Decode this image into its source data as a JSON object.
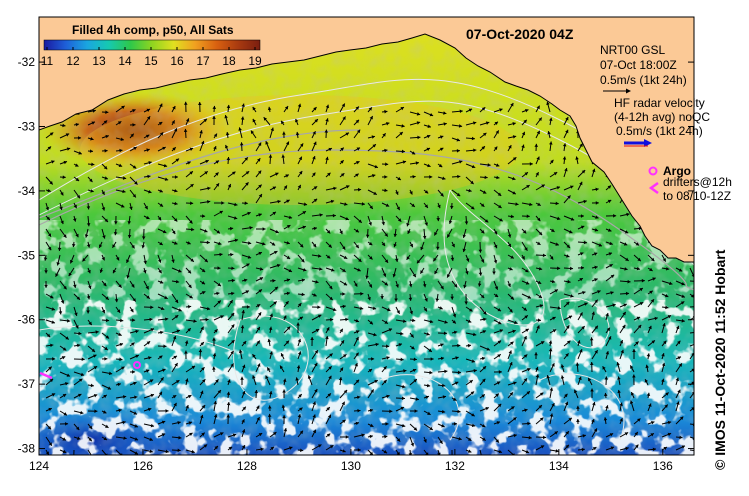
{
  "header": {
    "colorbar_title": "Filled 4h comp, p50, All Sats",
    "timestamp": "07-Oct-2020 04Z"
  },
  "colorbar": {
    "ticks": [
      "11",
      "12",
      "13",
      "14",
      "15",
      "16",
      "17",
      "18",
      "19"
    ],
    "colors": [
      "#1a1aa0",
      "#1e5fd8",
      "#1aa6e0",
      "#16c9b0",
      "#2ec84a",
      "#8fd420",
      "#e0e020",
      "#f0a020",
      "#d86010",
      "#a83a10",
      "#7a1e10"
    ]
  },
  "legend": {
    "nrt_title": "NRT00 GSL",
    "nrt_time": "07-Oct 18:00Z",
    "nrt_scale": "0.5m/s (1kt 24h)",
    "hf_line1": "HF radar velocity",
    "hf_line2": "(4-12h avg) noQC",
    "hf_scale": "0.5m/s (1kt 24h)",
    "argo_label": "Argo",
    "drifters_line1": "drifters@12h",
    "drifters_line2": "to 08/10-12Z",
    "hf_arrow_color": "#1010e0",
    "argo_color": "#ff30ff"
  },
  "axes": {
    "lon_ticks": [
      "124",
      "126",
      "128",
      "130",
      "132",
      "134",
      "136"
    ],
    "lat_ticks": [
      "-32",
      "-33",
      "-34",
      "-35",
      "-36",
      "-37",
      "-38"
    ],
    "lon_range": [
      124,
      136.6
    ],
    "lat_range": [
      -38.1,
      -31.3
    ]
  },
  "credit": "© IMOS 11-Oct-2020 11:52 Hobart",
  "colors": {
    "land": "#fbc996",
    "cloud": "#ffffff",
    "arrow": "#000000",
    "contour": "#e8e8e8",
    "track": "#a8a8a8"
  }
}
